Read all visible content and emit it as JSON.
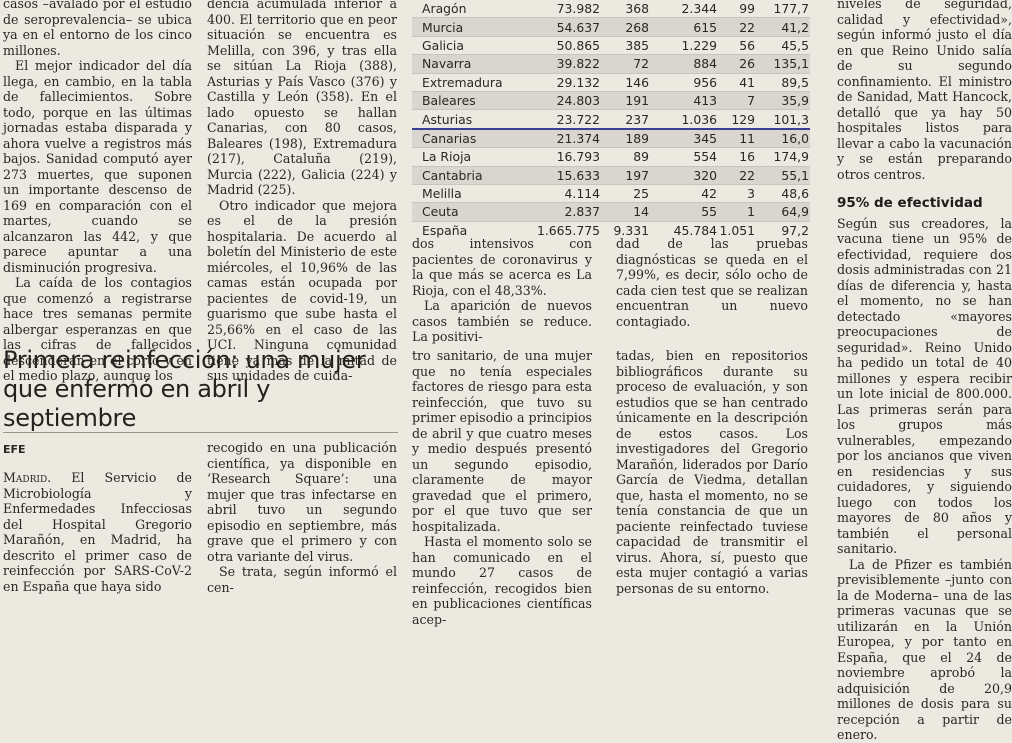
{
  "col1": [
    "casos –avalado por el estudio de seroprevalencia– se ubica ya en el entorno de los cinco millones.",
    "El mejor indicador del día llega, en cambio, en la tabla de fallecimientos. Sobre todo, porque en las últimas jornadas estaba disparada y ahora vuelve a registros más bajos. Sanidad computó ayer 273 muertes, que suponen un importante descenso de 169 en comparación con el martes, cuando se alcanzaron las 442, y que parece apuntar a una disminución progresiva.",
    "La caída de los contagios que comenzó a registrarse hace tres semanas permite albergar esperanzas en que las cifras de fallecidos descenderán en el corto y en el medio plazo, aunque los"
  ],
  "col2": [
    "dencia acumulada inferior a 400. El territorio que en peor situación se encuentra es Melilla, con 396, y tras ella se sitúan La Rioja (388), Asturias y País Vasco (376) y Castilla y León (358). En el lado opuesto se hallan Canarias, con 80 casos, Baleares (198), Extremadura (217), Cataluña (219), Murcia (222), Galicia (224) y Madrid (225).",
    "Otro indicador que mejora es el de la presión hospitalaria. De acuerdo al boletín del Ministerio de este miércoles, el 10,96% de las camas están ocupada por pacientes de covid-19, un guarismo que sube hasta el 25,66% en el caso de las UCI. Ninguna comunidad tiene ya más de la mitad de sus unidades de cuida-"
  ],
  "table": {
    "rows": [
      [
        "Aragón",
        "73.982",
        "368",
        "2.344",
        "99",
        "177,7"
      ],
      [
        "Murcia",
        "54.637",
        "268",
        "615",
        "22",
        "41,2"
      ],
      [
        "Galicia",
        "50.865",
        "385",
        "1.229",
        "56",
        "45,5"
      ],
      [
        "Navarra",
        "39.822",
        "72",
        "884",
        "26",
        "135,1"
      ],
      [
        "Extremadura",
        "29.132",
        "146",
        "956",
        "41",
        "89,5"
      ],
      [
        "Baleares",
        "24.803",
        "191",
        "413",
        "7",
        "35,9"
      ],
      [
        "Asturias",
        "23.722",
        "237",
        "1.036",
        "129",
        "101,3"
      ],
      [
        "Canarias",
        "21.374",
        "189",
        "345",
        "11",
        "16,0"
      ],
      [
        "La Rioja",
        "16.793",
        "89",
        "554",
        "16",
        "174,9"
      ],
      [
        "Cantabria",
        "15.633",
        "197",
        "320",
        "22",
        "55,1"
      ],
      [
        "Melilla",
        "4.114",
        "25",
        "42",
        "3",
        "48,6"
      ],
      [
        "Ceuta",
        "2.837",
        "14",
        "55",
        "1",
        "64,9"
      ]
    ],
    "total": [
      "España",
      "1.665.775",
      "9.331",
      "45.784",
      "1.051",
      "97,2"
    ]
  },
  "mid1": [
    "dos intensivos con pacientes de coronavirus y la que más se acerca es La Rioja, con el 48,33%.",
    "La aparición de nuevos casos también se reduce. La positivi-"
  ],
  "mid2": [
    "dad de las pruebas diagnósticas se queda en el 7,99%, es decir, sólo ocho de cada cien test que se realizan encuentran un nuevo contagiado."
  ],
  "col5": {
    "intro": "niveles de seguridad, calidad y efectividad», según informó justo el día en que Reino Unido salía de su segundo confinamiento. El ministro de Sanidad, Matt Hancock, detalló que ya hay 50 hospitales listos para llevar a cabo la vacunación y se están preparando otros centros.",
    "subhead": "95% de efectividad",
    "paragraphs": [
      "Según sus creadores, la vacuna tiene un 95% de efectividad, requiere dos dosis administradas con 21 días de diferencia y, hasta el momento, no se han detectado «mayores preocupaciones de seguridad». Reino Unido ha pedido un total de 40 millones y espera recibir un lote inicial de 800.000. Las primeras serán para los grupos más vulnerables, empezando por los ancianos que viven en residencias y sus cuidadores, y siguiendo luego con todos los mayores de 80 años y también el personal sanitario.",
      "La de Pfizer es también previsiblemente –junto con la de Moderna– una de las primeras vacunas que se utilizarán en la Unión Europea, y por tanto en España, que el 24 de noviembre aprobó la adquisición de 20,9 millones de dosis para su recepción a partir de enero."
    ]
  },
  "headline": "Primera reinfección: una mujer que enfermó en abril y septiembre",
  "byline": "EFE",
  "story": {
    "place": "Madrid.",
    "col1": "El Servicio de Microbiología y Enfermedades Infecciosas del Hospital Gregorio Marañón, en Madrid, ha descrito el primer caso de reinfección por SARS-CoV-2 en España que haya sido",
    "col2": [
      "recogido en una publicación científica, ya disponible en ‘Research Square’: una mujer que tras infectarse en abril tuvo un segundo episodio en septiembre, más grave que el primero y con otra variante del virus.",
      "Se trata, según informó el cen-"
    ],
    "col3": [
      "tro sanitario, de una mujer que no tenía especiales factores de riesgo para esta reinfección, que tuvo su primer episodio a principios de abril y que cuatro meses y medio después presentó un segundo episodio, claramente de mayor gravedad que el primero, por el que tuvo que ser hospitalizada.",
      "Hasta el momento solo se han comunicado en el mundo 27 casos de reinfección, recogidos bien en publicaciones científicas acep-"
    ],
    "col4": [
      "tadas, bien en repositorios bibliográficos durante su proceso de evaluación, y son estudios que se han centrado únicamente en la descripción de estos casos. Los investigadores del Gregorio Marañón, liderados por Darío García de Viedma, detallan que, hasta el momento, no se tenía constancia de que un paciente reinfectado tuviese capacidad de transmitir el virus. Ahora, sí, puesto que esta mujer contagió a varias personas de su entorno."
    ]
  }
}
